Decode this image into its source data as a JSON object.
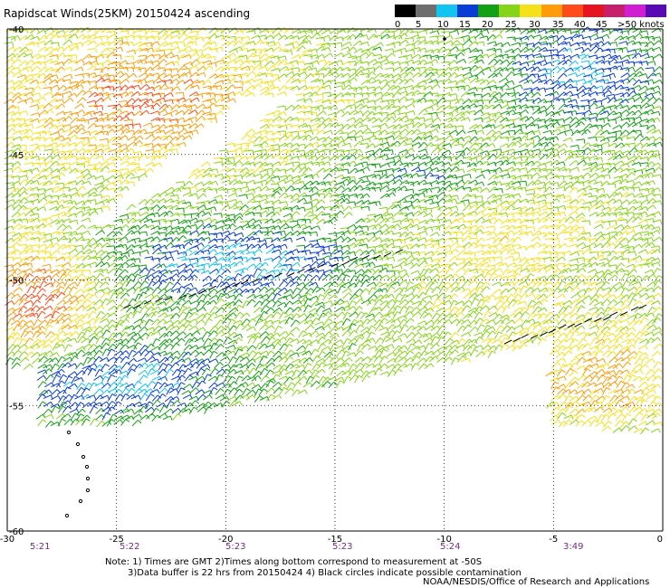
{
  "title": "Rapidscat Winds(25KM) 20150424 ascending",
  "legend": {
    "unit": "knots",
    "labels": [
      "0",
      "5",
      "10",
      "15",
      "20",
      "25",
      "30",
      "35",
      "40",
      "45",
      ">50 knots"
    ],
    "colors": [
      "#000000",
      "#6e6e6e",
      "#12c4f0",
      "#0a3cd6",
      "#14a014",
      "#86d41a",
      "#f4e11c",
      "#ff9c0a",
      "#ff4a1a",
      "#e6141e",
      "#c81e6e",
      "#d21ed2",
      "#5a0ab4"
    ]
  },
  "map": {
    "lat_ticks": [
      "-40",
      "-45",
      "-50",
      "-55",
      "-60"
    ],
    "lon_ticks": [
      "-30",
      "-25",
      "-20",
      "-15",
      "-10",
      "-5",
      "0"
    ],
    "times": [
      "5:21",
      "5:22",
      "5:23",
      "5:23",
      "5:24",
      "3:49"
    ]
  },
  "notes": {
    "line1": "Note: 1) Times are GMT 2)Times along bottom correspond to measurement at -50S",
    "line2": "3)Data buffer is 22 hrs from 20150424 4) Black circles indicate possible contamination",
    "line3": "NOAA/NESDIS/Office of Research and Applications"
  }
}
